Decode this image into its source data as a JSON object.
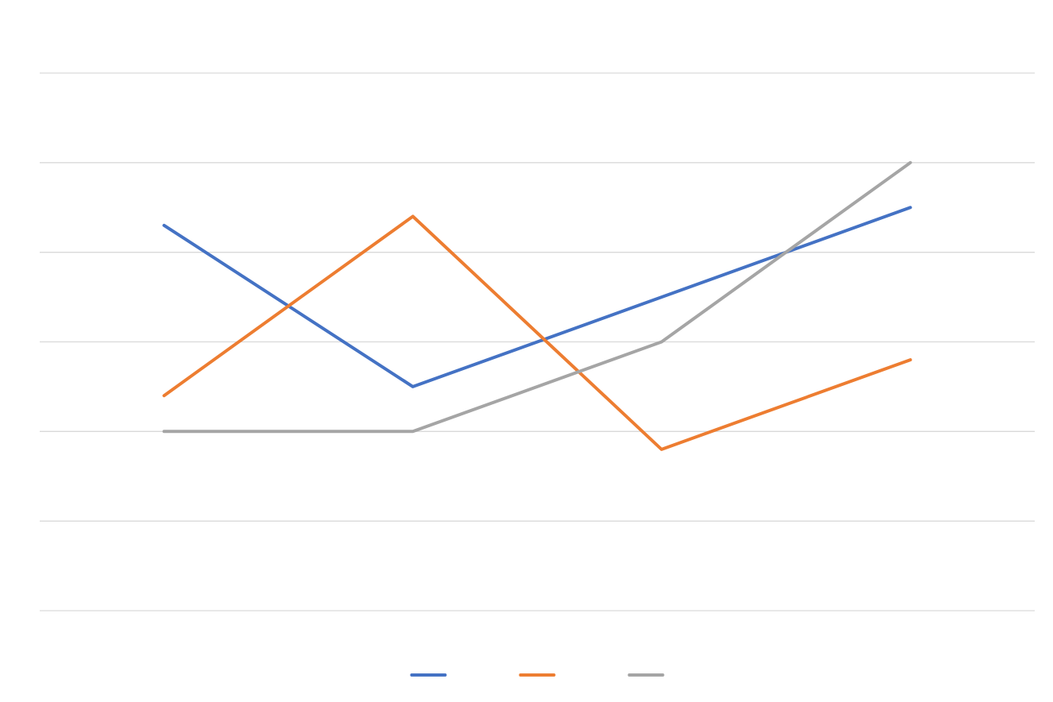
{
  "chart_data": {
    "type": "line",
    "title": "",
    "xlabel": "",
    "ylabel": "",
    "categories": [
      "",
      "",
      "",
      ""
    ],
    "ylim": [
      0,
      6
    ],
    "gridlines": [
      0,
      1,
      2,
      3,
      4,
      5,
      6
    ],
    "grid": "horizontal",
    "legend_position": "bottom",
    "series": [
      {
        "color": "#4472c4",
        "values": [
          4.3,
          2.5,
          3.5,
          4.5
        ]
      },
      {
        "color": "#ed7d31",
        "values": [
          2.4,
          4.4,
          1.8,
          2.8
        ]
      },
      {
        "color": "#a5a5a5",
        "values": [
          2.0,
          2.0,
          3.0,
          5.0
        ]
      }
    ]
  }
}
